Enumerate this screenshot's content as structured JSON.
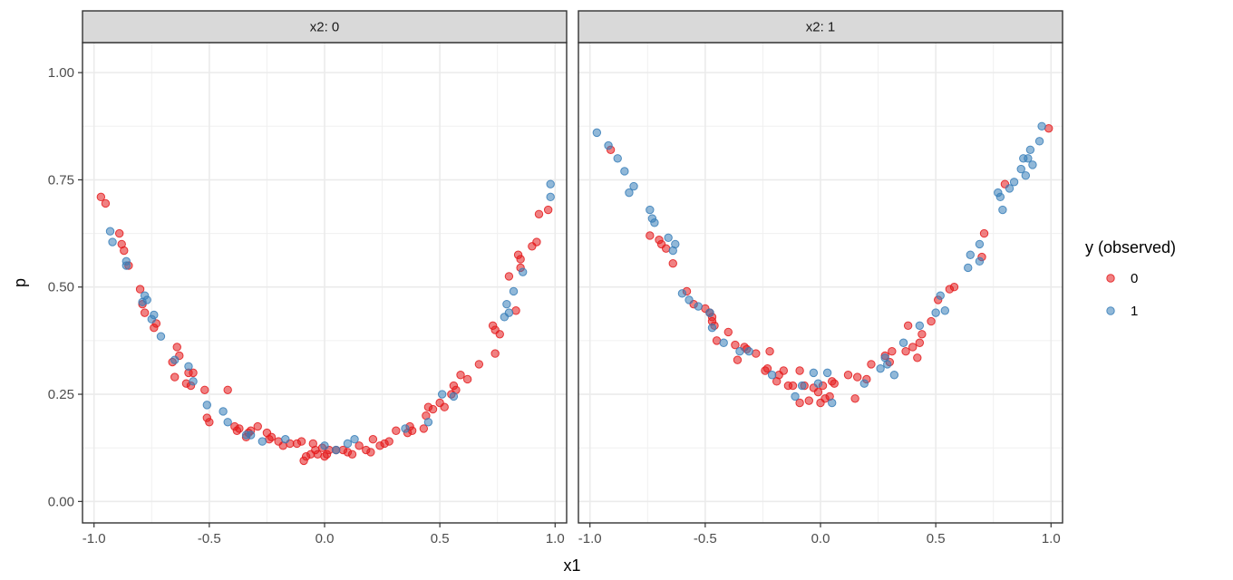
{
  "chart_data": {
    "type": "scatter",
    "xlabel": "x1",
    "ylabel": "p",
    "xlim": [
      -1.05,
      1.05
    ],
    "ylim": [
      -0.05,
      1.07
    ],
    "x_ticks": [
      -1.0,
      -0.5,
      0.0,
      0.5,
      1.0
    ],
    "x_tick_labels": [
      "-1.0",
      "-0.5",
      "0.0",
      "0.5",
      "1.0"
    ],
    "y_ticks": [
      0.0,
      0.25,
      0.5,
      0.75,
      1.0
    ],
    "y_tick_labels": [
      "0.00",
      "0.25",
      "0.50",
      "0.75",
      "1.00"
    ],
    "grid": true,
    "legend": {
      "title": "y (observed)",
      "position": "right",
      "entries": [
        {
          "label": "0",
          "color": "#E41A1C"
        },
        {
          "label": "1",
          "color": "#377EB8"
        }
      ]
    },
    "panels": [
      {
        "strip": "x2: 0",
        "series": [
          {
            "name": "0",
            "color": "#E41A1C",
            "points": [
              [
                -0.97,
                0.71
              ],
              [
                -0.95,
                0.695
              ],
              [
                -0.89,
                0.625
              ],
              [
                -0.88,
                0.6
              ],
              [
                -0.87,
                0.585
              ],
              [
                -0.85,
                0.55
              ],
              [
                -0.8,
                0.495
              ],
              [
                -0.79,
                0.46
              ],
              [
                -0.78,
                0.44
              ],
              [
                -0.74,
                0.405
              ],
              [
                -0.73,
                0.415
              ],
              [
                -0.66,
                0.325
              ],
              [
                -0.65,
                0.29
              ],
              [
                -0.64,
                0.36
              ],
              [
                -0.63,
                0.34
              ],
              [
                -0.6,
                0.275
              ],
              [
                -0.58,
                0.27
              ],
              [
                -0.57,
                0.3
              ],
              [
                -0.59,
                0.3
              ],
              [
                -0.52,
                0.26
              ],
              [
                -0.51,
                0.195
              ],
              [
                -0.5,
                0.185
              ],
              [
                -0.42,
                0.26
              ],
              [
                -0.39,
                0.175
              ],
              [
                -0.38,
                0.165
              ],
              [
                -0.37,
                0.17
              ],
              [
                -0.34,
                0.15
              ],
              [
                -0.33,
                0.16
              ],
              [
                -0.32,
                0.165
              ],
              [
                -0.29,
                0.175
              ],
              [
                -0.25,
                0.16
              ],
              [
                -0.24,
                0.145
              ],
              [
                -0.23,
                0.15
              ],
              [
                -0.2,
                0.14
              ],
              [
                -0.18,
                0.13
              ],
              [
                -0.15,
                0.135
              ],
              [
                -0.12,
                0.135
              ],
              [
                -0.1,
                0.14
              ],
              [
                -0.09,
                0.095
              ],
              [
                -0.08,
                0.105
              ],
              [
                -0.06,
                0.11
              ],
              [
                -0.05,
                0.135
              ],
              [
                -0.04,
                0.12
              ],
              [
                -0.03,
                0.11
              ],
              [
                -0.01,
                0.125
              ],
              [
                0.0,
                0.105
              ],
              [
                0.01,
                0.11
              ],
              [
                0.02,
                0.12
              ],
              [
                0.05,
                0.12
              ],
              [
                0.08,
                0.12
              ],
              [
                0.1,
                0.115
              ],
              [
                0.12,
                0.11
              ],
              [
                0.15,
                0.13
              ],
              [
                0.18,
                0.12
              ],
              [
                0.2,
                0.115
              ],
              [
                0.21,
                0.145
              ],
              [
                0.24,
                0.13
              ],
              [
                0.26,
                0.135
              ],
              [
                0.28,
                0.14
              ],
              [
                0.31,
                0.165
              ],
              [
                0.36,
                0.16
              ],
              [
                0.37,
                0.175
              ],
              [
                0.38,
                0.165
              ],
              [
                0.43,
                0.17
              ],
              [
                0.44,
                0.2
              ],
              [
                0.45,
                0.22
              ],
              [
                0.47,
                0.215
              ],
              [
                0.5,
                0.23
              ],
              [
                0.52,
                0.22
              ],
              [
                0.55,
                0.25
              ],
              [
                0.56,
                0.27
              ],
              [
                0.57,
                0.26
              ],
              [
                0.59,
                0.295
              ],
              [
                0.62,
                0.285
              ],
              [
                0.67,
                0.32
              ],
              [
                0.73,
                0.41
              ],
              [
                0.74,
                0.4
              ],
              [
                0.74,
                0.345
              ],
              [
                0.76,
                0.39
              ],
              [
                0.8,
                0.525
              ],
              [
                0.83,
                0.445
              ],
              [
                0.84,
                0.575
              ],
              [
                0.85,
                0.565
              ],
              [
                0.85,
                0.545
              ],
              [
                0.9,
                0.595
              ],
              [
                0.92,
                0.605
              ],
              [
                0.93,
                0.67
              ],
              [
                0.97,
                0.68
              ]
            ]
          },
          {
            "name": "1",
            "color": "#377EB8",
            "points": [
              [
                -0.93,
                0.63
              ],
              [
                -0.92,
                0.605
              ],
              [
                -0.86,
                0.56
              ],
              [
                -0.86,
                0.55
              ],
              [
                -0.79,
                0.465
              ],
              [
                -0.78,
                0.48
              ],
              [
                -0.77,
                0.47
              ],
              [
                -0.75,
                0.425
              ],
              [
                -0.74,
                0.435
              ],
              [
                -0.71,
                0.385
              ],
              [
                -0.65,
                0.33
              ],
              [
                -0.59,
                0.315
              ],
              [
                -0.57,
                0.28
              ],
              [
                -0.51,
                0.225
              ],
              [
                -0.44,
                0.21
              ],
              [
                -0.42,
                0.185
              ],
              [
                -0.34,
                0.155
              ],
              [
                -0.32,
                0.155
              ],
              [
                -0.27,
                0.14
              ],
              [
                -0.17,
                0.145
              ],
              [
                0.0,
                0.13
              ],
              [
                0.05,
                0.12
              ],
              [
                0.1,
                0.135
              ],
              [
                0.13,
                0.145
              ],
              [
                0.35,
                0.17
              ],
              [
                0.45,
                0.185
              ],
              [
                0.51,
                0.25
              ],
              [
                0.56,
                0.245
              ],
              [
                0.78,
                0.43
              ],
              [
                0.79,
                0.46
              ],
              [
                0.8,
                0.44
              ],
              [
                0.82,
                0.49
              ],
              [
                0.86,
                0.535
              ],
              [
                0.98,
                0.71
              ],
              [
                0.98,
                0.74
              ]
            ]
          }
        ]
      },
      {
        "strip": "x2: 1",
        "series": [
          {
            "name": "0",
            "color": "#E41A1C",
            "points": [
              [
                -0.91,
                0.82
              ],
              [
                -0.74,
                0.62
              ],
              [
                -0.7,
                0.61
              ],
              [
                -0.69,
                0.6
              ],
              [
                -0.67,
                0.59
              ],
              [
                -0.64,
                0.555
              ],
              [
                -0.58,
                0.49
              ],
              [
                -0.55,
                0.46
              ],
              [
                -0.5,
                0.45
              ],
              [
                -0.48,
                0.44
              ],
              [
                -0.47,
                0.43
              ],
              [
                -0.47,
                0.42
              ],
              [
                -0.46,
                0.41
              ],
              [
                -0.45,
                0.375
              ],
              [
                -0.4,
                0.395
              ],
              [
                -0.37,
                0.365
              ],
              [
                -0.36,
                0.33
              ],
              [
                -0.33,
                0.36
              ],
              [
                -0.32,
                0.355
              ],
              [
                -0.28,
                0.345
              ],
              [
                -0.24,
                0.305
              ],
              [
                -0.23,
                0.31
              ],
              [
                -0.22,
                0.35
              ],
              [
                -0.19,
                0.28
              ],
              [
                -0.18,
                0.295
              ],
              [
                -0.16,
                0.305
              ],
              [
                -0.14,
                0.27
              ],
              [
                -0.12,
                0.27
              ],
              [
                -0.09,
                0.305
              ],
              [
                -0.09,
                0.23
              ],
              [
                -0.07,
                0.27
              ],
              [
                -0.05,
                0.235
              ],
              [
                -0.03,
                0.265
              ],
              [
                -0.01,
                0.255
              ],
              [
                0.0,
                0.23
              ],
              [
                0.01,
                0.27
              ],
              [
                0.02,
                0.24
              ],
              [
                0.04,
                0.245
              ],
              [
                0.05,
                0.28
              ],
              [
                0.06,
                0.275
              ],
              [
                0.12,
                0.295
              ],
              [
                0.15,
                0.24
              ],
              [
                0.16,
                0.29
              ],
              [
                0.2,
                0.285
              ],
              [
                0.22,
                0.32
              ],
              [
                0.28,
                0.34
              ],
              [
                0.3,
                0.325
              ],
              [
                0.31,
                0.35
              ],
              [
                0.37,
                0.35
              ],
              [
                0.38,
                0.41
              ],
              [
                0.4,
                0.36
              ],
              [
                0.42,
                0.335
              ],
              [
                0.43,
                0.37
              ],
              [
                0.44,
                0.39
              ],
              [
                0.48,
                0.42
              ],
              [
                0.51,
                0.47
              ],
              [
                0.56,
                0.495
              ],
              [
                0.58,
                0.5
              ],
              [
                0.7,
                0.57
              ],
              [
                0.71,
                0.625
              ],
              [
                0.8,
                0.74
              ],
              [
                0.99,
                0.87
              ]
            ]
          },
          {
            "name": "1",
            "color": "#377EB8",
            "points": [
              [
                -0.97,
                0.86
              ],
              [
                -0.92,
                0.83
              ],
              [
                -0.88,
                0.8
              ],
              [
                -0.85,
                0.77
              ],
              [
                -0.83,
                0.72
              ],
              [
                -0.81,
                0.735
              ],
              [
                -0.74,
                0.68
              ],
              [
                -0.73,
                0.66
              ],
              [
                -0.72,
                0.65
              ],
              [
                -0.66,
                0.615
              ],
              [
                -0.63,
                0.6
              ],
              [
                -0.64,
                0.585
              ],
              [
                -0.6,
                0.485
              ],
              [
                -0.57,
                0.47
              ],
              [
                -0.53,
                0.455
              ],
              [
                -0.48,
                0.44
              ],
              [
                -0.47,
                0.405
              ],
              [
                -0.42,
                0.37
              ],
              [
                -0.35,
                0.35
              ],
              [
                -0.31,
                0.35
              ],
              [
                -0.21,
                0.295
              ],
              [
                -0.11,
                0.245
              ],
              [
                -0.08,
                0.27
              ],
              [
                -0.03,
                0.3
              ],
              [
                -0.01,
                0.275
              ],
              [
                0.03,
                0.3
              ],
              [
                0.05,
                0.23
              ],
              [
                0.19,
                0.275
              ],
              [
                0.26,
                0.31
              ],
              [
                0.28,
                0.335
              ],
              [
                0.29,
                0.32
              ],
              [
                0.32,
                0.295
              ],
              [
                0.36,
                0.37
              ],
              [
                0.43,
                0.41
              ],
              [
                0.5,
                0.44
              ],
              [
                0.52,
                0.48
              ],
              [
                0.54,
                0.445
              ],
              [
                0.64,
                0.545
              ],
              [
                0.65,
                0.575
              ],
              [
                0.69,
                0.6
              ],
              [
                0.69,
                0.56
              ],
              [
                0.77,
                0.72
              ],
              [
                0.78,
                0.71
              ],
              [
                0.79,
                0.68
              ],
              [
                0.82,
                0.73
              ],
              [
                0.84,
                0.745
              ],
              [
                0.87,
                0.775
              ],
              [
                0.88,
                0.8
              ],
              [
                0.89,
                0.76
              ],
              [
                0.9,
                0.8
              ],
              [
                0.91,
                0.82
              ],
              [
                0.92,
                0.785
              ],
              [
                0.95,
                0.84
              ],
              [
                0.96,
                0.875
              ]
            ]
          }
        ]
      }
    ]
  }
}
